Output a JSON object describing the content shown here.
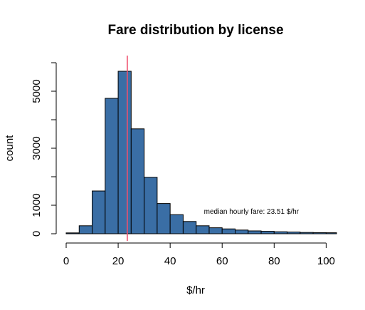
{
  "chart_data": {
    "type": "bar",
    "title": "Fare distribution by license",
    "xlabel": "$/hr",
    "ylabel": "count",
    "bin_width": 5,
    "bins": [
      {
        "x0": 0,
        "x1": 5,
        "count": 30
      },
      {
        "x0": 5,
        "x1": 10,
        "count": 280
      },
      {
        "x0": 10,
        "x1": 15,
        "count": 1500
      },
      {
        "x0": 15,
        "x1": 20,
        "count": 4750
      },
      {
        "x0": 20,
        "x1": 25,
        "count": 5700
      },
      {
        "x0": 25,
        "x1": 30,
        "count": 3680
      },
      {
        "x0": 30,
        "x1": 35,
        "count": 1980
      },
      {
        "x0": 35,
        "x1": 40,
        "count": 1060
      },
      {
        "x0": 40,
        "x1": 45,
        "count": 670
      },
      {
        "x0": 45,
        "x1": 50,
        "count": 430
      },
      {
        "x0": 50,
        "x1": 55,
        "count": 280
      },
      {
        "x0": 55,
        "x1": 60,
        "count": 210
      },
      {
        "x0": 60,
        "x1": 65,
        "count": 170
      },
      {
        "x0": 65,
        "x1": 70,
        "count": 130
      },
      {
        "x0": 70,
        "x1": 75,
        "count": 100
      },
      {
        "x0": 75,
        "x1": 80,
        "count": 85
      },
      {
        "x0": 80,
        "x1": 85,
        "count": 70
      },
      {
        "x0": 85,
        "x1": 90,
        "count": 60
      },
      {
        "x0": 90,
        "x1": 95,
        "count": 45
      },
      {
        "x0": 95,
        "x1": 100,
        "count": 40
      },
      {
        "x0": 100,
        "x1": 105,
        "count": 35
      }
    ],
    "xlim": [
      0,
      104
    ],
    "ylim": [
      0,
      6000
    ],
    "x_ticks": [
      0,
      20,
      40,
      60,
      80,
      100
    ],
    "y_ticks": [
      0,
      1000,
      3000,
      5000
    ],
    "y_tick_marks": [
      0,
      1000,
      2000,
      3000,
      4000,
      5000,
      6000
    ],
    "grid": false,
    "bar_color": "#3a6ea5",
    "bar_edge_color": "#000000",
    "median_line": {
      "value": 23.51,
      "color": "#f0506e"
    },
    "annotation": {
      "text": "median hourly fare: 23.51 $/hr",
      "x": 53,
      "y": 700
    }
  }
}
